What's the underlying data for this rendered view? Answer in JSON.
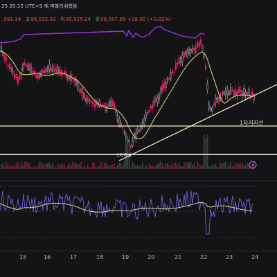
{
  "header": {
    "time_text": "25 20:12 UTC+9",
    "session_text": "에 퍼블리쉬했음",
    "ohlc": [
      {
        "label": "",
        "value": ",991.34"
      },
      {
        "label": "고",
        "value": "96,032.92"
      },
      {
        "label": "저",
        "value": "95,925.24"
      },
      {
        "label": "종",
        "value": "96,007.89 +18.00 (+0.02%)"
      }
    ]
  },
  "annotations": {
    "support_label": "1차지지선",
    "low_marker": "1차지선"
  },
  "colors": {
    "background": "#141417",
    "up_candle": "#2b2b33",
    "down_candle": "#e0205a",
    "ma_line": "#d8cf6a",
    "purple_line": "#9b30e6",
    "oscillator": "#6a62e0",
    "support_line": "#ffffff",
    "trend_line": "#fff3b0"
  },
  "chart_data": {
    "type": "candlestick",
    "x_axis_labels": [
      "15",
      "16",
      "17",
      "18",
      "19",
      "20",
      "21",
      "22",
      "23",
      "24"
    ],
    "panels": [
      "price",
      "volume",
      "oscillator"
    ],
    "indicators": [
      "moving average",
      "purple envelope",
      "oscillator with signal line"
    ]
  }
}
